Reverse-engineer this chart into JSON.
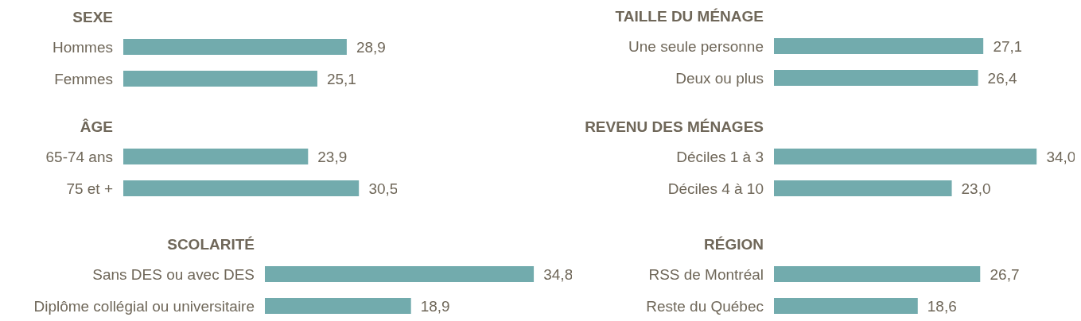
{
  "chart_data": [
    {
      "type": "bar",
      "orientation": "horizontal",
      "title": "SEXE",
      "categories": [
        "Hommes",
        "Femmes"
      ],
      "values": [
        28.9,
        25.1
      ],
      "value_labels": [
        "28,9",
        "25,1"
      ],
      "color": "#72abad",
      "tick_labels": "y"
    },
    {
      "type": "bar",
      "orientation": "horizontal",
      "title": "TAILLE DU MÉNAGE",
      "categories": [
        "Une seule personne",
        "Deux ou plus"
      ],
      "values": [
        27.1,
        26.4
      ],
      "value_labels": [
        "27,1",
        "26,4"
      ],
      "color": "#72abad",
      "tick_labels": "y"
    },
    {
      "type": "bar",
      "orientation": "horizontal",
      "title": "ÂGE",
      "categories": [
        "65-74 ans",
        "75 et +"
      ],
      "values": [
        23.9,
        30.5
      ],
      "value_labels": [
        "23,9",
        "30,5"
      ],
      "color": "#72abad",
      "tick_labels": "y"
    },
    {
      "type": "bar",
      "orientation": "horizontal",
      "title": "REVENU DES MÉNAGES",
      "categories": [
        "Déciles 1 à 3",
        "Déciles 4 à 10"
      ],
      "values": [
        34.0,
        23.0
      ],
      "value_labels": [
        "34,0",
        "23,0"
      ],
      "color": "#72abad",
      "tick_labels": "y"
    },
    {
      "type": "bar",
      "orientation": "horizontal",
      "title": "SCOLARITÉ",
      "categories": [
        "Sans DES ou avec DES",
        "Diplôme collégial ou universitaire"
      ],
      "values": [
        34.8,
        18.9
      ],
      "value_labels": [
        "34,8",
        "18,9"
      ],
      "color": "#72abad",
      "tick_labels": "y"
    },
    {
      "type": "bar",
      "orientation": "horizontal",
      "title": "RÉGION",
      "categories": [
        "RSS de Montréal",
        "Reste du Québec"
      ],
      "values": [
        26.7,
        18.6
      ],
      "value_labels": [
        "26,7",
        "18,6"
      ],
      "color": "#72abad",
      "tick_labels": "y"
    }
  ]
}
